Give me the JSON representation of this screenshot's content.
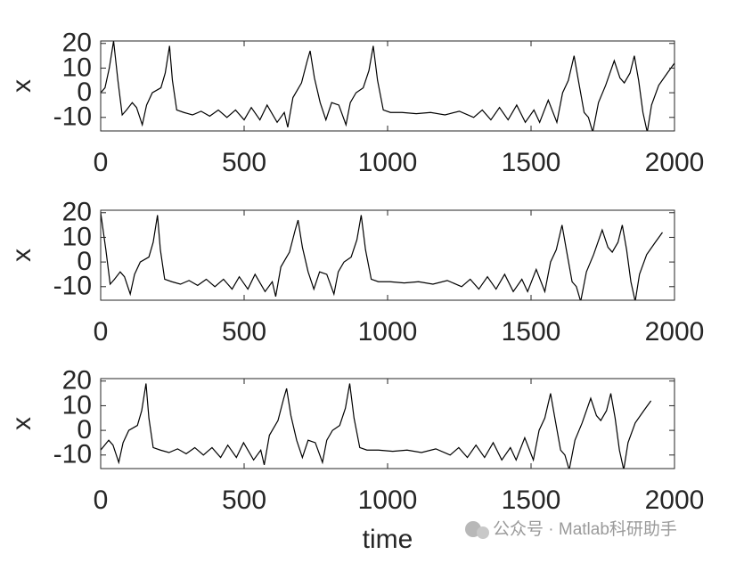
{
  "chart_data": [
    {
      "type": "line",
      "ylabel": "x",
      "xlim": [
        0,
        2000
      ],
      "xticks": [
        0,
        500,
        1000,
        1500,
        2000
      ],
      "ylim": [
        -15.5,
        21
      ],
      "yticks": [
        -10,
        0,
        10,
        20
      ],
      "x": [
        0,
        15,
        30,
        45,
        60,
        75,
        90,
        110,
        125,
        145,
        160,
        180,
        210,
        225,
        240,
        250,
        265,
        290,
        320,
        350,
        380,
        410,
        440,
        470,
        500,
        525,
        555,
        580,
        615,
        640,
        652,
        670,
        700,
        720,
        730,
        745,
        765,
        785,
        805,
        830,
        855,
        870,
        890,
        915,
        935,
        950,
        965,
        985,
        1010,
        1050,
        1100,
        1150,
        1200,
        1250,
        1300,
        1330,
        1360,
        1390,
        1420,
        1450,
        1480,
        1510,
        1530,
        1560,
        1590,
        1610,
        1630,
        1650,
        1665,
        1685,
        1700,
        1715,
        1735,
        1760,
        1790,
        1810,
        1825,
        1845,
        1860,
        1875,
        1890,
        1905,
        1920,
        1945,
        1975,
        2000
      ],
      "series": [
        {
          "color": "#000000",
          "values": [
            0,
            2,
            10,
            21,
            5,
            -9,
            -7,
            -4,
            -6,
            -13,
            -5,
            0,
            2,
            8,
            19,
            5,
            -7,
            -8,
            -9,
            -7.5,
            -9.5,
            -7,
            -10,
            -7,
            -11,
            -6,
            -11,
            -5,
            -12,
            -8,
            -14,
            -2,
            4,
            13,
            17,
            6,
            -4,
            -11,
            -4,
            -5,
            -13,
            -4,
            0,
            2,
            9,
            19,
            5,
            -7,
            -8,
            -8,
            -8.5,
            -8,
            -9,
            -7.5,
            -10,
            -7,
            -11,
            -6,
            -11,
            -5,
            -12,
            -7,
            -12,
            -3,
            -12,
            0,
            5,
            15,
            5,
            -8,
            -10,
            -16,
            -4,
            3,
            13,
            6,
            4,
            8,
            15,
            5,
            -8,
            -16,
            -5,
            3,
            8,
            12
          ]
        }
      ]
    },
    {
      "type": "line",
      "ylabel": "x",
      "xlim": [
        0,
        2000
      ],
      "xticks": [
        0,
        500,
        1000,
        1500,
        2000
      ],
      "ylim": [
        -15.5,
        21
      ],
      "yticks": [
        -10,
        0,
        10,
        20
      ],
      "x": [
        0,
        18,
        33,
        48,
        68,
        83,
        103,
        118,
        138,
        168,
        183,
        198,
        208,
        223,
        248,
        278,
        308,
        338,
        368,
        398,
        428,
        458,
        483,
        513,
        538,
        573,
        598,
        610,
        628,
        658,
        678,
        688,
        703,
        723,
        743,
        763,
        788,
        813,
        828,
        848,
        873,
        893,
        908,
        923,
        943,
        968,
        1008,
        1058,
        1108,
        1158,
        1208,
        1258,
        1288,
        1318,
        1348,
        1378,
        1408,
        1438,
        1468,
        1488,
        1518,
        1548,
        1568,
        1588,
        1608,
        1623,
        1643,
        1658,
        1673,
        1693,
        1718,
        1748,
        1768,
        1783,
        1803,
        1818,
        1833,
        1848,
        1863,
        1878,
        1903,
        1933,
        1958
      ],
      "series": [
        {
          "color": "#000000",
          "values": [
            20,
            5,
            -9,
            -7,
            -4,
            -6,
            -13,
            -5,
            0,
            2,
            8,
            19,
            5,
            -7,
            -8,
            -9,
            -7.5,
            -9.5,
            -7,
            -10,
            -7,
            -11,
            -6,
            -11,
            -5,
            -12,
            -8,
            -14,
            -2,
            4,
            13,
            17,
            6,
            -4,
            -11,
            -4,
            -5,
            -13,
            -4,
            0,
            2,
            9,
            19,
            5,
            -7,
            -8,
            -8,
            -8.5,
            -8,
            -9,
            -7.5,
            -10,
            -7,
            -11,
            -6,
            -11,
            -5,
            -12,
            -7,
            -12,
            -3,
            -12,
            0,
            5,
            15,
            5,
            -8,
            -10,
            -16,
            -4,
            3,
            13,
            6,
            4,
            8,
            15,
            5,
            -8,
            -16,
            -5,
            3,
            8,
            12
          ]
        }
      ]
    },
    {
      "type": "line",
      "ylabel": "x",
      "xlabel": "time",
      "xlim": [
        0,
        2000
      ],
      "xticks": [
        0,
        500,
        1000,
        1500,
        2000
      ],
      "ylim": [
        -15.5,
        21
      ],
      "yticks": [
        -10,
        0,
        10,
        20
      ],
      "x": [
        0,
        28,
        43,
        63,
        78,
        98,
        128,
        143,
        158,
        168,
        183,
        208,
        238,
        268,
        298,
        328,
        358,
        388,
        418,
        443,
        473,
        498,
        533,
        558,
        570,
        588,
        618,
        638,
        648,
        663,
        683,
        703,
        723,
        748,
        773,
        788,
        808,
        833,
        853,
        868,
        883,
        903,
        928,
        968,
        1018,
        1068,
        1118,
        1168,
        1218,
        1248,
        1278,
        1308,
        1338,
        1368,
        1398,
        1428,
        1448,
        1478,
        1508,
        1528,
        1548,
        1568,
        1583,
        1603,
        1618,
        1633,
        1653,
        1678,
        1708,
        1728,
        1743,
        1763,
        1778,
        1793,
        1808,
        1823,
        1838,
        1863,
        1893,
        1918
      ],
      "series": [
        {
          "color": "#000000",
          "values": [
            -8,
            -4,
            -6,
            -13,
            -5,
            0,
            2,
            8,
            19,
            5,
            -7,
            -8,
            -9,
            -7.5,
            -9.5,
            -7,
            -10,
            -7,
            -11,
            -6,
            -11,
            -5,
            -12,
            -8,
            -14,
            -2,
            4,
            13,
            17,
            6,
            -4,
            -11,
            -4,
            -5,
            -13,
            -4,
            0,
            2,
            9,
            19,
            5,
            -7,
            -8,
            -8,
            -8.5,
            -8,
            -9,
            -7.5,
            -10,
            -7,
            -11,
            -6,
            -11,
            -5,
            -12,
            -7,
            -12,
            -3,
            -12,
            0,
            5,
            15,
            5,
            -8,
            -10,
            -16,
            -4,
            3,
            13,
            6,
            4,
            8,
            15,
            5,
            -8,
            -16,
            -5,
            3,
            8,
            12
          ]
        }
      ]
    }
  ],
  "watermark": "公众号 · Matlab科研助手"
}
